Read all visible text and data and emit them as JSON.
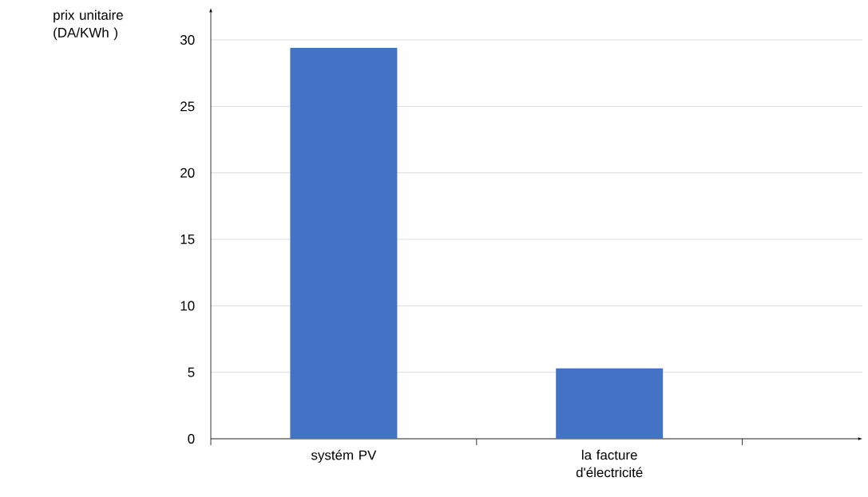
{
  "chart_data": {
    "type": "bar",
    "ylabel": "prix unitaire (DA/KWh )",
    "categories": [
      "systém PV",
      "la facture d'électricité"
    ],
    "values": [
      29.4,
      5.3
    ],
    "color": "#4472c4",
    "ylim": [
      0,
      30
    ],
    "yticks": [
      0,
      5,
      10,
      15,
      20,
      25,
      30
    ],
    "grid": "y"
  }
}
